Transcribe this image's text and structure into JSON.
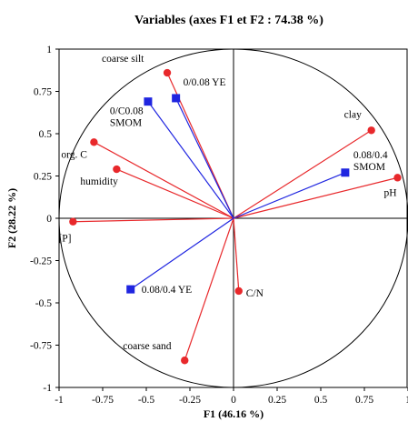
{
  "chart_data": {
    "type": "scatter",
    "title": "Variables (axes F1 et F2 : 74.38 %)",
    "xlabel": "F1 (46.16 %)",
    "ylabel": "F2 (28.22 %)",
    "xlim": [
      -1,
      1
    ],
    "ylim": [
      -1,
      1
    ],
    "xticks": [
      "-1",
      "-0.75",
      "-0.5",
      "-0.25",
      "0",
      "0.25",
      "0.5",
      "0.75",
      "1"
    ],
    "yticks": [
      "-1",
      "-0.75",
      "-0.5",
      "-0.25",
      "0",
      "0.25",
      "0.5",
      "0.75",
      "1"
    ],
    "grid": false,
    "correlation_circle": true,
    "colors": {
      "active": "#e8282b",
      "supplementary": "#1f25e0"
    },
    "series": [
      {
        "marker": "circle",
        "points": [
          {
            "label": "coarse silt",
            "x": -0.38,
            "y": 0.86
          },
          {
            "label": "clay",
            "x": 0.79,
            "y": 0.52
          },
          {
            "label": "pH",
            "x": 0.94,
            "y": 0.24
          },
          {
            "label": "org. C",
            "x": -0.8,
            "y": 0.45
          },
          {
            "label": "humidity",
            "x": -0.67,
            "y": 0.29
          },
          {
            "label": "[P]",
            "x": -0.92,
            "y": -0.02
          },
          {
            "label": "C/N",
            "x": 0.03,
            "y": -0.43
          },
          {
            "label": "coarse sand",
            "x": -0.28,
            "y": -0.84
          }
        ]
      },
      {
        "marker": "square",
        "points": [
          {
            "label": "0/0.08 YE",
            "x": -0.33,
            "y": 0.71
          },
          {
            "label": "0/C0.08\nSMOM",
            "x": -0.49,
            "y": 0.69
          },
          {
            "label": "0.08/0.4\nSMOM",
            "x": 0.64,
            "y": 0.27
          },
          {
            "label": "0.08/0.4 YE",
            "x": -0.59,
            "y": -0.42
          }
        ]
      }
    ]
  }
}
